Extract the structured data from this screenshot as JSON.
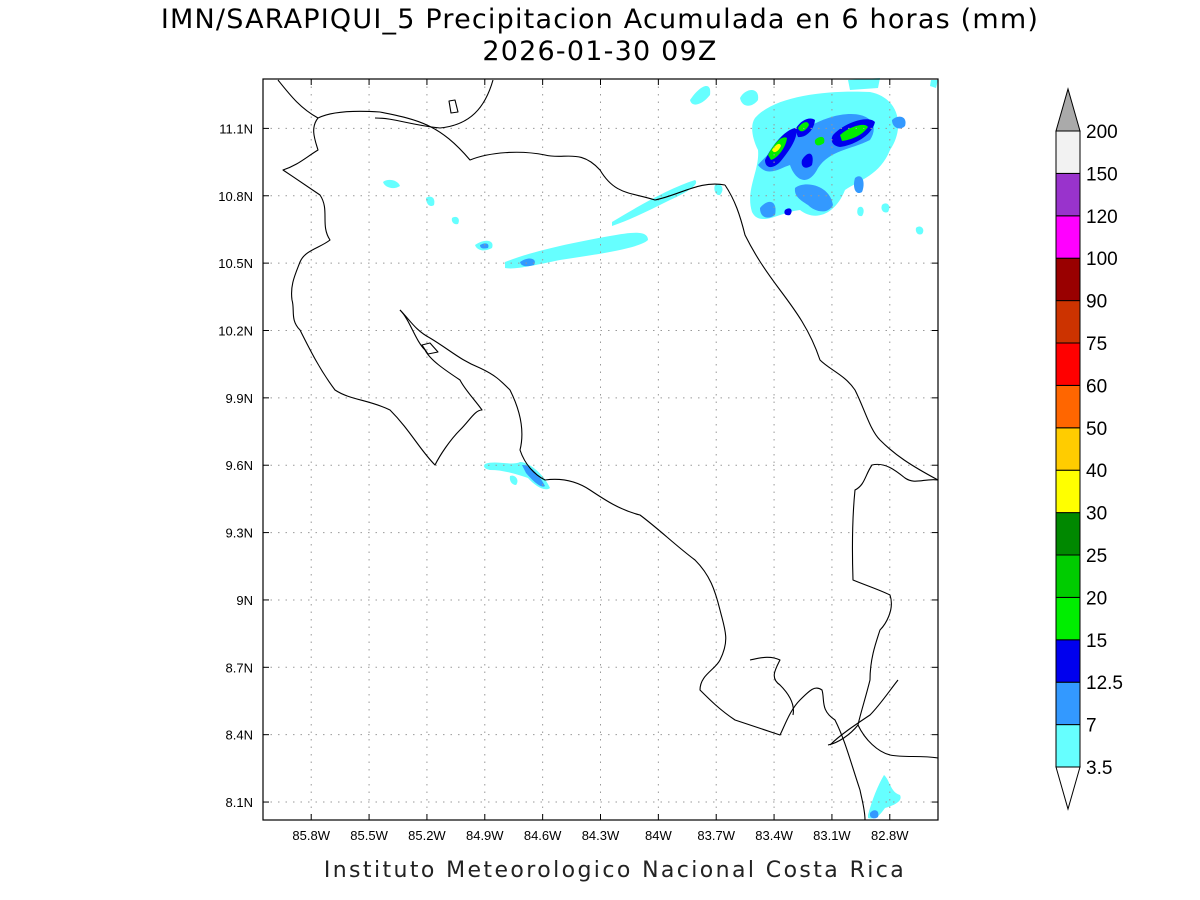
{
  "title": {
    "line1": "IMN/SARAPIQUI_5 Precipitacion Acumulada en 6 horas (mm)",
    "line2": "2026-01-30 09Z"
  },
  "footer": "Instituto Meteorologico Nacional Costa Rica",
  "map": {
    "lon_range": [
      -86.05,
      -82.55
    ],
    "lat_range": [
      8.02,
      11.32
    ],
    "lon_ticks": [
      {
        "value": -85.8,
        "label": "85.8W"
      },
      {
        "value": -85.5,
        "label": "85.5W"
      },
      {
        "value": -85.2,
        "label": "85.2W"
      },
      {
        "value": -84.9,
        "label": "84.9W"
      },
      {
        "value": -84.6,
        "label": "84.6W"
      },
      {
        "value": -84.3,
        "label": "84.3W"
      },
      {
        "value": -84.0,
        "label": "84W"
      },
      {
        "value": -83.7,
        "label": "83.7W"
      },
      {
        "value": -83.4,
        "label": "83.4W"
      },
      {
        "value": -83.1,
        "label": "83.1W"
      },
      {
        "value": -82.8,
        "label": "82.8W"
      }
    ],
    "lat_ticks": [
      {
        "value": 11.1,
        "label": "11.1N"
      },
      {
        "value": 10.8,
        "label": "10.8N"
      },
      {
        "value": 10.5,
        "label": "10.5N"
      },
      {
        "value": 10.2,
        "label": "10.2N"
      },
      {
        "value": 9.9,
        "label": "9.9N"
      },
      {
        "value": 9.6,
        "label": "9.6N"
      },
      {
        "value": 9.3,
        "label": "9.3N"
      },
      {
        "value": 9.0,
        "label": "9N"
      },
      {
        "value": 8.7,
        "label": "8.7N"
      },
      {
        "value": 8.4,
        "label": "8.4N"
      },
      {
        "value": 8.1,
        "label": "8.1N"
      }
    ],
    "grid": true,
    "colors": {
      "land_line": "#000000",
      "grid": "#999999"
    }
  },
  "colorbar": {
    "labels": [
      "3.5",
      "7",
      "12.5",
      "15",
      "20",
      "25",
      "30",
      "40",
      "50",
      "60",
      "75",
      "90",
      "100",
      "120",
      "150",
      "200"
    ],
    "colors": [
      "#66ffff",
      "#3399ff",
      "#0000ee",
      "#00ee00",
      "#00cc00",
      "#008800",
      "#ffff00",
      "#ffcc00",
      "#ff6600",
      "#ff0000",
      "#cc3300",
      "#990000",
      "#ff00ff",
      "#9933cc",
      "#f2f2f2",
      "#aaaaaa"
    ],
    "under_color": "#ffffff",
    "over_color": "#aaaaaa"
  }
}
